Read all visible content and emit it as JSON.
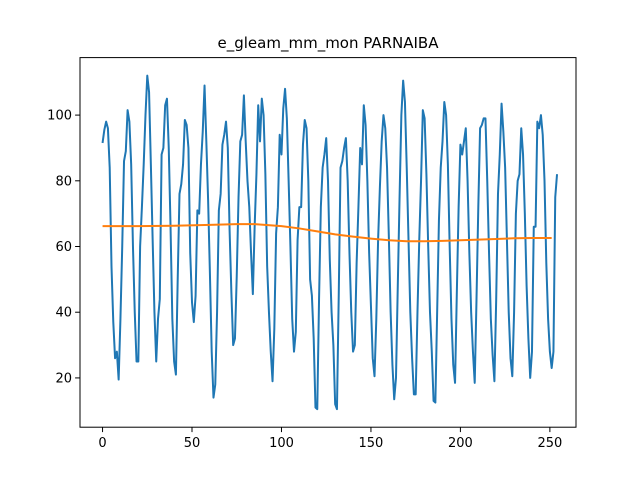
{
  "chart_data": {
    "type": "line",
    "title": "e_gleam_mm_mon PARNAIBA",
    "xlabel": "",
    "ylabel": "",
    "xlim": [
      -12.6,
      264.6
    ],
    "ylim": [
      5,
      117.5
    ],
    "x_ticks": [
      0,
      50,
      100,
      150,
      200,
      250
    ],
    "y_ticks": [
      20,
      40,
      60,
      80,
      100
    ],
    "grid": false,
    "legend": "none",
    "series": [
      {
        "color": "#1f77b4",
        "points": [
          [
            0,
            91.5
          ],
          [
            1,
            95.5
          ],
          [
            2,
            98
          ],
          [
            3,
            96
          ],
          [
            4,
            84
          ],
          [
            5,
            54
          ],
          [
            6,
            37
          ],
          [
            7,
            26
          ],
          [
            8,
            28
          ],
          [
            9,
            19.5
          ],
          [
            10,
            38
          ],
          [
            11,
            60
          ],
          [
            12,
            86
          ],
          [
            13,
            89
          ],
          [
            14,
            101.5
          ],
          [
            15,
            98
          ],
          [
            16,
            85
          ],
          [
            17,
            60
          ],
          [
            18,
            40
          ],
          [
            19,
            25
          ],
          [
            20,
            25
          ],
          [
            21,
            60
          ],
          [
            22,
            72
          ],
          [
            23,
            85
          ],
          [
            24,
            100
          ],
          [
            25,
            112
          ],
          [
            26,
            107
          ],
          [
            27,
            85
          ],
          [
            28,
            62
          ],
          [
            29,
            40
          ],
          [
            30,
            25
          ],
          [
            31,
            38
          ],
          [
            32,
            44
          ],
          [
            33,
            88
          ],
          [
            34,
            90
          ],
          [
            35,
            103
          ],
          [
            36,
            105
          ],
          [
            37,
            90
          ],
          [
            38,
            66
          ],
          [
            39,
            38
          ],
          [
            40,
            25
          ],
          [
            41,
            21
          ],
          [
            42,
            50
          ],
          [
            43,
            76
          ],
          [
            44,
            79
          ],
          [
            45,
            85
          ],
          [
            46,
            98.5
          ],
          [
            47,
            97
          ],
          [
            48,
            90
          ],
          [
            49,
            58
          ],
          [
            50,
            43
          ],
          [
            51,
            37
          ],
          [
            52,
            45
          ],
          [
            53,
            71
          ],
          [
            54,
            70
          ],
          [
            55,
            85
          ],
          [
            56,
            95
          ],
          [
            57,
            109
          ],
          [
            58,
            92
          ],
          [
            59,
            74
          ],
          [
            60,
            52
          ],
          [
            61,
            28
          ],
          [
            62,
            14
          ],
          [
            63,
            18
          ],
          [
            64,
            40
          ],
          [
            65,
            71
          ],
          [
            66,
            76
          ],
          [
            67,
            91
          ],
          [
            68,
            94
          ],
          [
            69,
            98
          ],
          [
            70,
            90
          ],
          [
            71,
            65
          ],
          [
            72,
            46
          ],
          [
            73,
            30
          ],
          [
            74,
            32
          ],
          [
            75,
            51
          ],
          [
            76,
            75
          ],
          [
            77,
            92
          ],
          [
            78,
            94
          ],
          [
            79,
            106
          ],
          [
            80,
            92
          ],
          [
            81,
            80
          ],
          [
            82,
            72
          ],
          [
            83,
            58
          ],
          [
            84,
            45.5
          ],
          [
            85,
            66
          ],
          [
            86,
            82
          ],
          [
            87,
            103
          ],
          [
            88,
            92
          ],
          [
            89,
            105
          ],
          [
            90,
            100
          ],
          [
            91,
            82
          ],
          [
            92,
            54
          ],
          [
            93,
            40
          ],
          [
            94,
            28
          ],
          [
            95,
            19
          ],
          [
            96,
            35
          ],
          [
            97,
            64
          ],
          [
            98,
            72
          ],
          [
            99,
            94
          ],
          [
            100,
            88
          ],
          [
            101,
            102
          ],
          [
            102,
            108
          ],
          [
            103,
            99
          ],
          [
            104,
            80
          ],
          [
            105,
            60
          ],
          [
            106,
            38
          ],
          [
            107,
            28
          ],
          [
            108,
            34
          ],
          [
            109,
            62
          ],
          [
            110,
            72
          ],
          [
            111,
            72
          ],
          [
            112,
            91
          ],
          [
            113,
            98.5
          ],
          [
            114,
            96
          ],
          [
            115,
            80
          ],
          [
            116,
            50
          ],
          [
            117,
            45
          ],
          [
            118,
            32
          ],
          [
            119,
            11
          ],
          [
            120,
            10.5
          ],
          [
            121,
            44
          ],
          [
            122,
            72
          ],
          [
            123,
            84
          ],
          [
            124,
            88
          ],
          [
            125,
            93
          ],
          [
            126,
            80
          ],
          [
            127,
            56
          ],
          [
            128,
            40
          ],
          [
            129,
            30
          ],
          [
            130,
            12
          ],
          [
            131,
            10.5
          ],
          [
            132,
            45
          ],
          [
            133,
            84
          ],
          [
            134,
            86
          ],
          [
            135,
            90
          ],
          [
            136,
            93
          ],
          [
            137,
            80
          ],
          [
            138,
            58
          ],
          [
            139,
            40
          ],
          [
            140,
            28
          ],
          [
            141,
            30
          ],
          [
            142,
            55
          ],
          [
            143,
            72
          ],
          [
            144,
            90
          ],
          [
            145,
            85
          ],
          [
            146,
            103
          ],
          [
            147,
            97
          ],
          [
            148,
            80
          ],
          [
            149,
            58
          ],
          [
            150,
            42
          ],
          [
            151,
            26
          ],
          [
            152,
            20.5
          ],
          [
            153,
            38
          ],
          [
            154,
            62
          ],
          [
            155,
            78
          ],
          [
            156,
            92
          ],
          [
            157,
            100
          ],
          [
            158,
            96
          ],
          [
            159,
            84
          ],
          [
            160,
            63
          ],
          [
            161,
            40
          ],
          [
            162,
            24
          ],
          [
            163,
            13.5
          ],
          [
            164,
            20
          ],
          [
            165,
            48
          ],
          [
            166,
            75
          ],
          [
            167,
            100
          ],
          [
            168,
            110.5
          ],
          [
            169,
            104
          ],
          [
            170,
            84
          ],
          [
            171,
            62
          ],
          [
            172,
            40
          ],
          [
            173,
            26
          ],
          [
            174,
            15
          ],
          [
            175,
            15
          ],
          [
            176,
            40
          ],
          [
            177,
            62
          ],
          [
            178,
            80
          ],
          [
            179,
            101.5
          ],
          [
            180,
            99
          ],
          [
            181,
            82
          ],
          [
            182,
            60
          ],
          [
            183,
            40
          ],
          [
            184,
            28
          ],
          [
            185,
            13
          ],
          [
            186,
            12.5
          ],
          [
            187,
            40
          ],
          [
            188,
            68
          ],
          [
            189,
            84
          ],
          [
            190,
            92
          ],
          [
            191,
            104
          ],
          [
            192,
            100
          ],
          [
            193,
            85
          ],
          [
            194,
            60
          ],
          [
            195,
            38
          ],
          [
            196,
            24
          ],
          [
            197,
            18.5
          ],
          [
            198,
            46
          ],
          [
            199,
            72
          ],
          [
            200,
            91
          ],
          [
            201,
            88
          ],
          [
            202,
            92
          ],
          [
            203,
            96
          ],
          [
            204,
            80
          ],
          [
            205,
            58
          ],
          [
            206,
            40
          ],
          [
            207,
            28
          ],
          [
            208,
            18.5
          ],
          [
            209,
            44
          ],
          [
            210,
            72
          ],
          [
            211,
            96
          ],
          [
            212,
            97
          ],
          [
            213,
            99
          ],
          [
            214,
            99
          ],
          [
            215,
            80
          ],
          [
            216,
            58
          ],
          [
            217,
            38
          ],
          [
            218,
            27
          ],
          [
            219,
            19
          ],
          [
            220,
            44
          ],
          [
            221,
            76
          ],
          [
            222,
            88
          ],
          [
            223,
            103.5
          ],
          [
            224,
            95
          ],
          [
            225,
            84
          ],
          [
            226,
            62
          ],
          [
            227,
            40
          ],
          [
            228,
            26
          ],
          [
            229,
            20.5
          ],
          [
            230,
            40
          ],
          [
            231,
            70
          ],
          [
            232,
            80
          ],
          [
            233,
            82
          ],
          [
            234,
            96
          ],
          [
            235,
            88
          ],
          [
            236,
            70
          ],
          [
            237,
            48
          ],
          [
            238,
            32
          ],
          [
            239,
            20
          ],
          [
            240,
            28
          ],
          [
            241,
            66
          ],
          [
            242,
            66
          ],
          [
            243,
            98
          ],
          [
            244,
            96
          ],
          [
            245,
            100
          ],
          [
            246,
            94
          ],
          [
            247,
            80
          ],
          [
            248,
            55
          ],
          [
            249,
            38
          ],
          [
            250,
            28
          ],
          [
            251,
            23
          ],
          [
            252,
            28
          ],
          [
            253,
            75
          ],
          [
            254,
            82
          ]
        ]
      },
      {
        "color": "#ff7f0e",
        "points": [
          [
            0,
            66.2
          ],
          [
            20,
            66.2
          ],
          [
            40,
            66.3
          ],
          [
            60,
            66.6
          ],
          [
            75,
            66.8
          ],
          [
            85,
            66.8
          ],
          [
            100,
            66.2
          ],
          [
            110,
            65.5
          ],
          [
            120,
            64.6
          ],
          [
            130,
            63.7
          ],
          [
            140,
            63.0
          ],
          [
            150,
            62.4
          ],
          [
            160,
            61.9
          ],
          [
            170,
            61.6
          ],
          [
            180,
            61.6
          ],
          [
            190,
            61.7
          ],
          [
            200,
            61.9
          ],
          [
            210,
            62.1
          ],
          [
            220,
            62.3
          ],
          [
            230,
            62.5
          ],
          [
            240,
            62.6
          ],
          [
            251,
            62.6
          ]
        ]
      }
    ]
  }
}
